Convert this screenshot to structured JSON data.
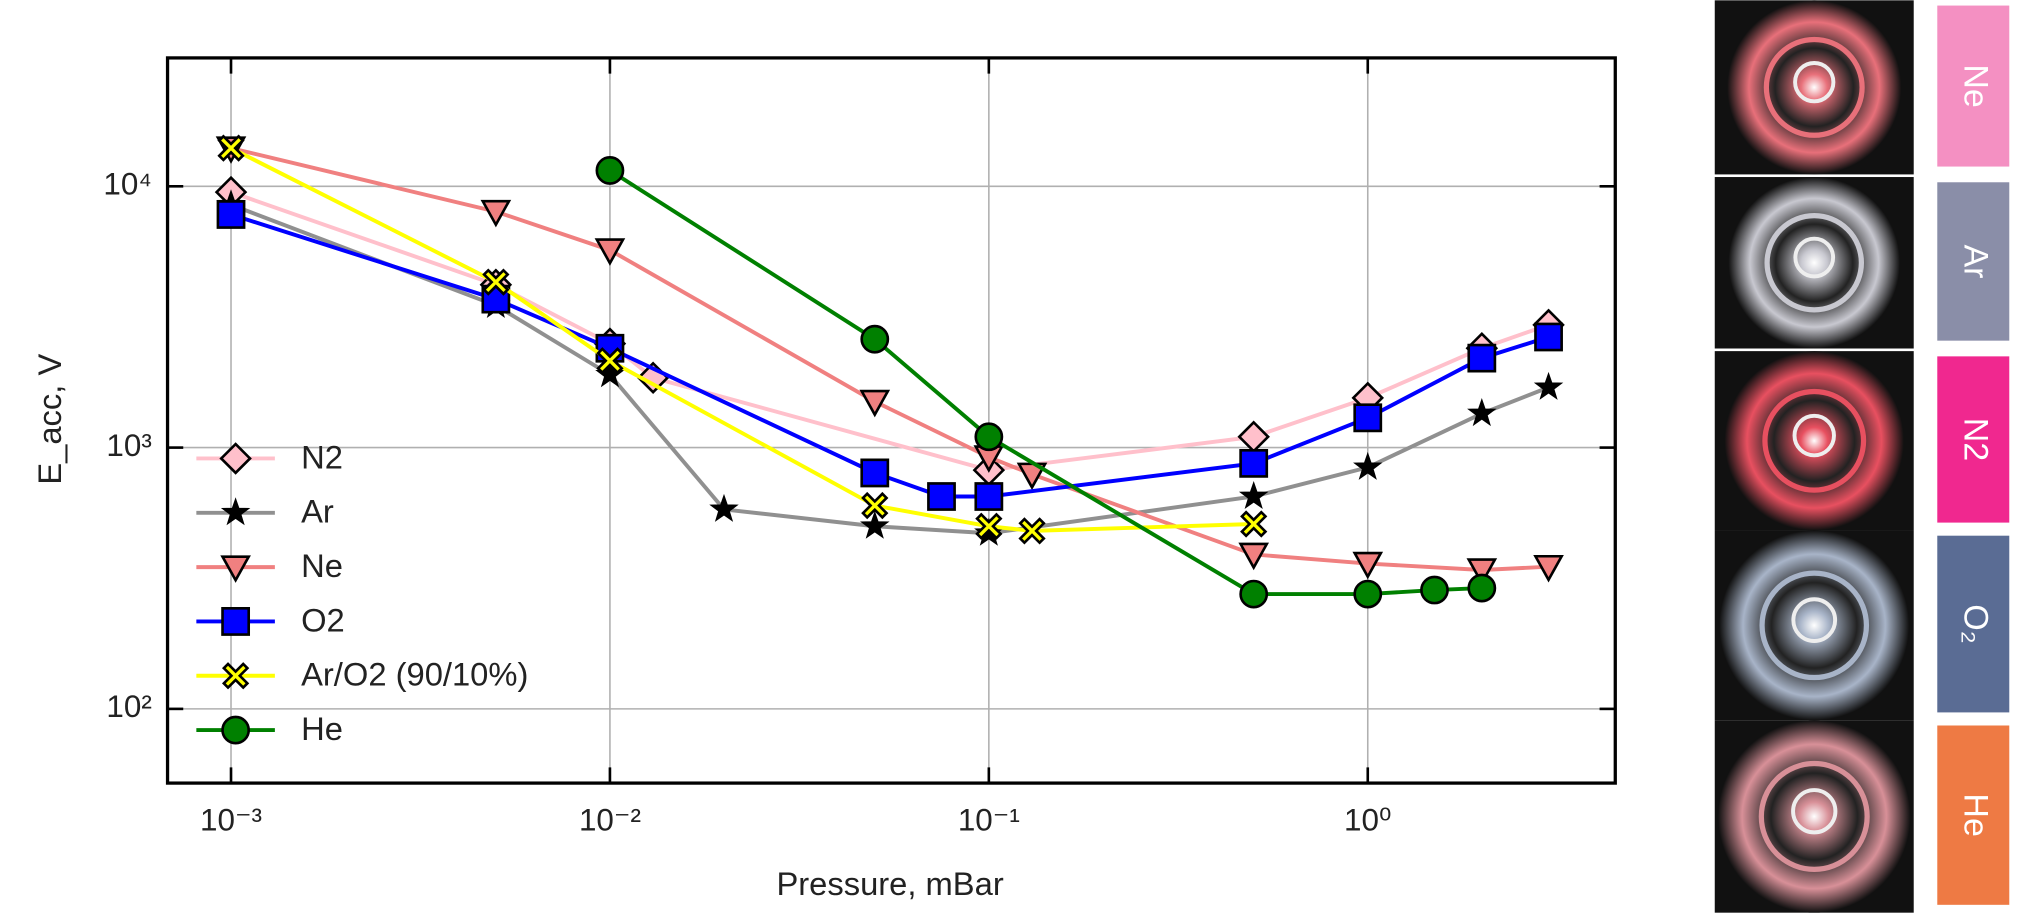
{
  "chart_data": {
    "type": "line",
    "title_x": "Pressure, mBar",
    "title_y": "E_acc, V",
    "xscale": "log",
    "yscale": "log",
    "grid": true,
    "legend": "lower-left",
    "xlim": [
      0.00068,
      4.5
    ],
    "ylim": [
      52,
      31000
    ],
    "xticks": [
      {
        "value": 0.001,
        "label": "10⁻³"
      },
      {
        "value": 0.01,
        "label": "10⁻²"
      },
      {
        "value": 0.1,
        "label": "10⁻¹"
      },
      {
        "value": 1,
        "label": "10⁰"
      }
    ],
    "yticks": [
      {
        "value": 100,
        "label": "10²"
      },
      {
        "value": 1000,
        "label": "10³"
      },
      {
        "value": 10000,
        "label": "10⁴"
      }
    ],
    "series": [
      {
        "name": "N2",
        "color": "#ffc0cb",
        "marker": "diamond",
        "x": [
          0.001,
          0.005,
          0.01,
          0.013,
          0.1,
          0.5,
          1,
          2,
          3
        ],
        "values": [
          9500,
          4200,
          2500,
          1850,
          820,
          1100,
          1550,
          2400,
          2950
        ]
      },
      {
        "name": "Ar",
        "color": "#909090",
        "marker": "star",
        "x": [
          0.001,
          0.005,
          0.01,
          0.02,
          0.05,
          0.1,
          0.5,
          1,
          2,
          3
        ],
        "values": [
          8500,
          3500,
          1900,
          580,
          500,
          470,
          650,
          840,
          1350,
          1700
        ]
      },
      {
        "name": "Ne",
        "color": "#f08080",
        "marker": "triangle-down",
        "x": [
          0.001,
          0.005,
          0.01,
          0.05,
          0.1,
          0.13,
          0.5,
          1,
          2,
          3
        ],
        "values": [
          14000,
          8000,
          5700,
          1500,
          920,
          790,
          390,
          360,
          340,
          350
        ]
      },
      {
        "name": "O2",
        "color": "#0000ff",
        "marker": "square",
        "x": [
          0.001,
          0.005,
          0.01,
          0.05,
          0.075,
          0.1,
          0.5,
          1,
          2,
          3
        ],
        "values": [
          7800,
          3700,
          2400,
          800,
          650,
          650,
          870,
          1300,
          2200,
          2650
        ]
      },
      {
        "name": "Ar/O2 (90/10%)",
        "color": "#ffff00",
        "marker": "x",
        "x": [
          0.001,
          0.005,
          0.01,
          0.05,
          0.1,
          0.13,
          0.5
        ],
        "values": [
          14000,
          4300,
          2150,
          600,
          500,
          480,
          510
        ]
      },
      {
        "name": "He",
        "color": "#008000",
        "marker": "circle",
        "x": [
          0.01,
          0.05,
          0.1,
          0.5,
          1,
          1.5,
          2
        ],
        "values": [
          11500,
          2600,
          1100,
          275,
          275,
          285,
          290
        ]
      }
    ]
  },
  "side_panels": [
    {
      "label": "Ne",
      "color": "#f490c2",
      "glow": "#e8707a"
    },
    {
      "label": "Ar",
      "color": "#8a8ea8",
      "glow": "#c8c8d0"
    },
    {
      "label": "N2",
      "color": "#f0288f",
      "glow": "#e85060"
    },
    {
      "label": "O₂",
      "color": "#5a6c94",
      "glow": "#a8b4c8"
    },
    {
      "label": "He",
      "color": "#ee7a44",
      "glow": "#d89098"
    }
  ]
}
